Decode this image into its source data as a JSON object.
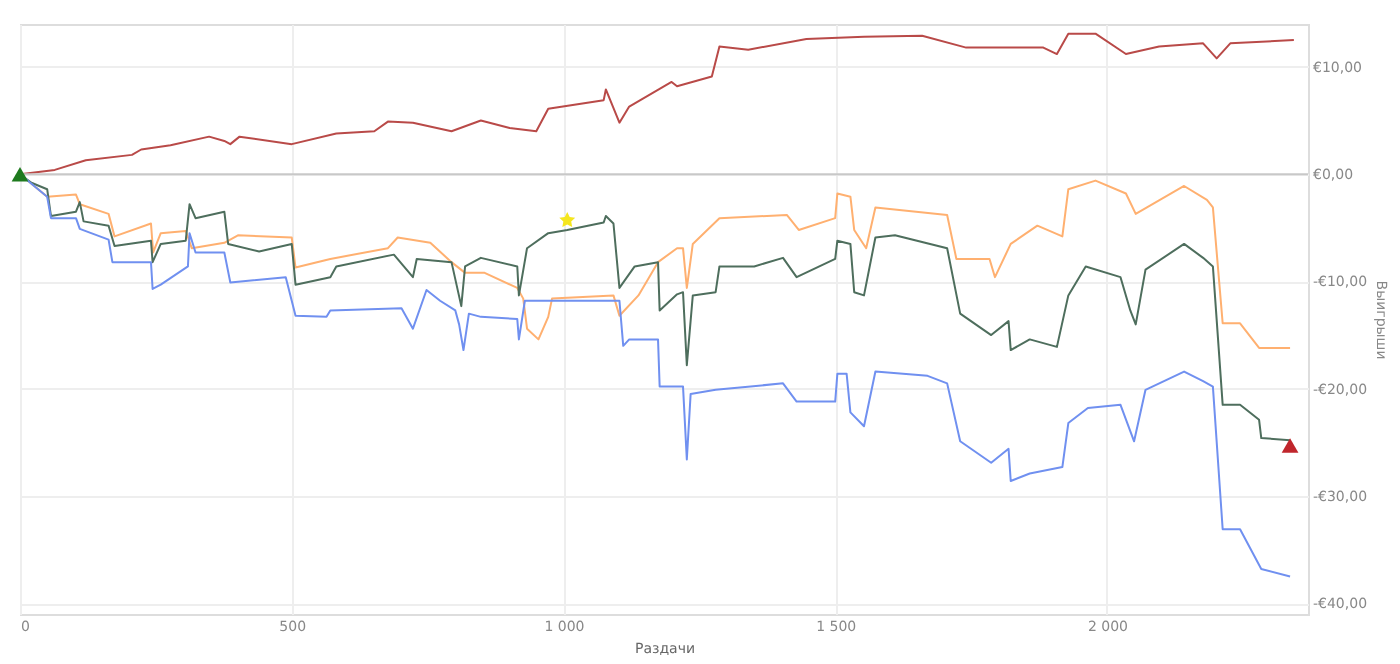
{
  "chart_data": {
    "type": "line",
    "xlabel": "Раздачи",
    "ylabel": "Выигрыши",
    "xlim": [
      0,
      2370
    ],
    "ylim": [
      -41,
      14
    ],
    "xticks": [
      0,
      500,
      {
        "value": 1000,
        "label": "1 000"
      },
      {
        "value": 1500,
        "label": "1 500"
      },
      {
        "value": 2000,
        "label": "2 000"
      }
    ],
    "yticks": [
      {
        "value": -40,
        "label": "-€40,00"
      },
      {
        "value": -30,
        "label": "-€30,00"
      },
      {
        "value": -20,
        "label": "-€20,00"
      },
      {
        "value": -10,
        "label": "-€10,00"
      },
      {
        "value": 0,
        "label": "€0,00"
      },
      {
        "value": 10,
        "label": "€10,00"
      }
    ],
    "grid": true,
    "line_style": "solid",
    "marker": "none",
    "ref_lines": [
      {
        "axis": "y",
        "value": 0,
        "color": "#c8c8c8"
      }
    ],
    "series": [
      {
        "color": "#b94a48",
        "x": [
          0,
          64,
          121,
          206,
          223,
          277,
          348,
          376,
          387,
          404,
          500,
          582,
          652,
          677,
          723,
          794,
          848,
          901,
          950,
          972,
          1074,
          1078,
          1103,
          1121,
          1199,
          1209,
          1273,
          1287,
          1340,
          1447,
          1553,
          1660,
          1741,
          1883,
          1908,
          1929,
          1979,
          2035,
          2096,
          2177,
          2202,
          2227,
          2344
        ],
        "values": [
          0,
          0.4,
          1.3,
          1.8,
          2.3,
          2.7,
          3.5,
          3.1,
          2.8,
          3.5,
          2.8,
          3.8,
          4.0,
          4.9,
          4.8,
          4.0,
          5.0,
          4.3,
          4.0,
          6.1,
          6.9,
          7.9,
          4.8,
          6.3,
          8.6,
          8.2,
          9.1,
          11.9,
          11.6,
          12.6,
          12.8,
          12.9,
          11.8,
          11.8,
          11.2,
          13.1,
          13.1,
          11.2,
          11.9,
          12.2,
          10.8,
          12.2,
          12.5
        ]
      },
      {
        "color": "#ffb070",
        "x": [
          0,
          50,
          103,
          110,
          163,
          174,
          241,
          245,
          259,
          305,
          316,
          376,
          401,
          500,
          507,
          571,
          677,
          695,
          755,
          794,
          819,
          855,
          915,
          926,
          933,
          954,
          972,
          979,
          1092,
          1103,
          1138,
          1174,
          1209,
          1220,
          1227,
          1238,
          1287,
          1411,
          1433,
          1500,
          1504,
          1528,
          1535,
          1557,
          1574,
          1706,
          1723,
          1784,
          1794,
          1823,
          1872,
          1918,
          1929,
          1979,
          2035,
          2053,
          2142,
          2184,
          2195,
          2213,
          2245,
          2280,
          2337
        ],
        "values": [
          0,
          -2.1,
          -1.9,
          -2.8,
          -3.7,
          -5.8,
          -4.6,
          -7.3,
          -5.5,
          -5.3,
          -6.9,
          -6.4,
          -5.7,
          -5.9,
          -8.7,
          -7.9,
          -6.9,
          -5.9,
          -6.4,
          -8.2,
          -9.2,
          -9.2,
          -10.6,
          -11.6,
          -14.4,
          -15.4,
          -13.3,
          -11.6,
          -11.3,
          -13.2,
          -11.3,
          -8.2,
          -6.9,
          -6.9,
          -10.6,
          -6.5,
          -4.1,
          -3.8,
          -5.2,
          -4.1,
          -1.8,
          -2.1,
          -5.2,
          -6.9,
          -3.1,
          -3.8,
          -7.9,
          -7.9,
          -9.6,
          -6.5,
          -4.8,
          -5.8,
          -1.4,
          -0.6,
          -1.8,
          -3.7,
          -1.1,
          -2.4,
          -3.1,
          -13.9,
          -13.9,
          -16.2,
          -16.2
        ]
      },
      {
        "color": "#4e6e5d",
        "x": [
          0,
          21,
          50,
          57,
          103,
          110,
          117,
          163,
          174,
          241,
          244,
          259,
          305,
          312,
          323,
          376,
          383,
          440,
          500,
          507,
          571,
          582,
          688,
          723,
          730,
          794,
          812,
          819,
          848,
          915,
          918,
          933,
          972,
          1007,
          1074,
          1078,
          1092,
          1103,
          1131,
          1174,
          1177,
          1209,
          1220,
          1227,
          1238,
          1280,
          1287,
          1351,
          1404,
          1429,
          1500,
          1504,
          1528,
          1535,
          1553,
          1574,
          1610,
          1706,
          1730,
          1787,
          1819,
          1823,
          1858,
          1908,
          1929,
          1961,
          2025,
          2043,
          2053,
          2071,
          2142,
          2177,
          2195,
          2213,
          2245,
          2280,
          2284,
          2337
        ],
        "values": [
          0,
          -0.8,
          -1.4,
          -3.9,
          -3.5,
          -2.6,
          -4.4,
          -4.8,
          -6.7,
          -6.2,
          -8.2,
          -6.5,
          -6.2,
          -2.8,
          -4.1,
          -3.5,
          -6.5,
          -7.2,
          -6.5,
          -10.3,
          -9.6,
          -8.6,
          -7.5,
          -9.6,
          -7.9,
          -8.2,
          -12.3,
          -8.6,
          -7.8,
          -8.6,
          -11.3,
          -6.9,
          -5.5,
          -5.2,
          -4.5,
          -3.9,
          -4.6,
          -10.6,
          -8.6,
          -8.2,
          -12.7,
          -11.2,
          -11.0,
          -17.8,
          -11.3,
          -11.0,
          -8.6,
          -8.6,
          -7.8,
          -9.6,
          -7.9,
          -6.2,
          -6.5,
          -11.0,
          -11.3,
          -5.9,
          -5.7,
          -6.9,
          -13.0,
          -15.0,
          -13.7,
          -16.4,
          -15.4,
          -16.1,
          -11.3,
          -8.6,
          -9.6,
          -12.7,
          -14.0,
          -8.9,
          -6.5,
          -7.8,
          -8.6,
          -21.5,
          -21.5,
          -22.9,
          -24.6,
          -24.8
        ]
      },
      {
        "color": "#7090f0",
        "x": [
          0,
          50,
          57,
          103,
          110,
          163,
          170,
          241,
          244,
          259,
          309,
          312,
          323,
          376,
          387,
          489,
          507,
          564,
          571,
          702,
          723,
          748,
          773,
          801,
          808,
          816,
          826,
          848,
          915,
          918,
          929,
          1103,
          1110,
          1121,
          1174,
          1177,
          1209,
          1220,
          1227,
          1234,
          1280,
          1404,
          1429,
          1500,
          1504,
          1521,
          1528,
          1553,
          1574,
          1670,
          1706,
          1730,
          1787,
          1819,
          1823,
          1858,
          1918,
          1929,
          1965,
          2025,
          2050,
          2071,
          2142,
          2177,
          2195,
          2213,
          2245,
          2284,
          2337
        ],
        "values": [
          0,
          -2.1,
          -4.1,
          -4.1,
          -5.1,
          -6.1,
          -8.2,
          -8.2,
          -10.7,
          -10.3,
          -8.6,
          -5.5,
          -7.3,
          -7.3,
          -10.1,
          -9.6,
          -13.2,
          -13.3,
          -12.7,
          -12.5,
          -14.4,
          -10.8,
          -11.8,
          -12.7,
          -14.0,
          -16.4,
          -13.0,
          -13.3,
          -13.5,
          -15.4,
          -11.8,
          -11.8,
          -16.0,
          -15.4,
          -15.4,
          -19.8,
          -19.8,
          -19.8,
          -26.6,
          -20.5,
          -20.1,
          -19.5,
          -21.2,
          -21.2,
          -18.6,
          -18.6,
          -22.2,
          -23.5,
          -18.4,
          -18.8,
          -19.5,
          -24.9,
          -26.9,
          -25.6,
          -28.6,
          -27.9,
          -27.3,
          -23.2,
          -21.8,
          -21.5,
          -24.9,
          -20.1,
          -18.4,
          -19.3,
          -19.8,
          -33.1,
          -33.1,
          -36.8,
          -37.5
        ]
      },
      {
        "type": "scatter",
        "marker": "triangle",
        "color": "#1e7a1e",
        "x": [
          0
        ],
        "values": [
          0
        ]
      },
      {
        "type": "scatter",
        "marker": "star",
        "color": "#f5e61e",
        "x": [
          1007
        ],
        "values": [
          -4.3
        ]
      },
      {
        "type": "scatter",
        "marker": "triangle",
        "color": "#c0262c",
        "x": [
          2337
        ],
        "values": [
          -25.3
        ]
      }
    ]
  }
}
